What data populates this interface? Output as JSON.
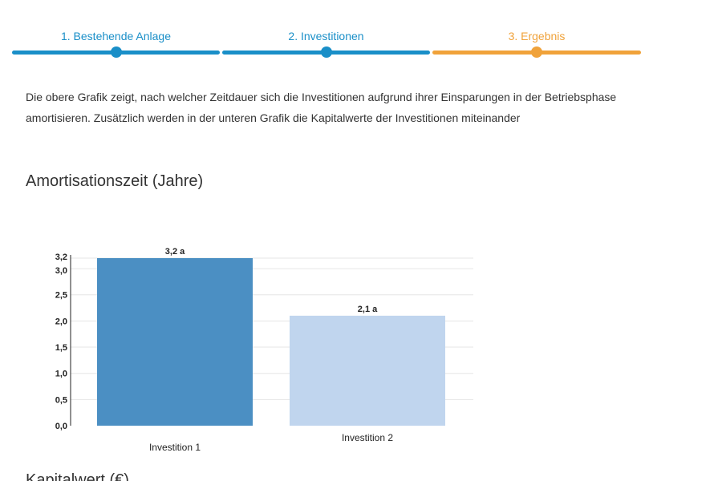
{
  "stepper": {
    "steps": [
      {
        "label": "1. Bestehende Anlage",
        "color": "#1a8fc8",
        "state": "completed"
      },
      {
        "label": "2. Investitionen",
        "color": "#1a8fc8",
        "state": "completed"
      },
      {
        "label": "3. Ergebnis",
        "color": "#f0a23a",
        "state": "active"
      }
    ]
  },
  "description": "Die obere Grafik zeigt, nach welcher Zeitdauer sich die Investitionen aufgrund ihrer Einsparungen in der Betriebsphase amortisieren. Zusätzlich werden in der unteren Grafik die Kapitalwerte der Investitionen miteinander",
  "chart_data": {
    "type": "bar",
    "title": "Amortisationszeit (Jahre)",
    "categories": [
      "Investition 1",
      "Investition 2"
    ],
    "values": [
      3.2,
      2.1
    ],
    "value_labels": [
      "3,2 a",
      "2,1 a"
    ],
    "bar_colors": [
      "#4b8fc3",
      "#c0d5ee"
    ],
    "ylim": [
      0,
      3.2
    ],
    "yticks": [
      0,
      0.5,
      1.0,
      1.5,
      2.0,
      2.5,
      3.0,
      3.2
    ],
    "ytick_labels": [
      "0,0",
      "0,5",
      "1,0",
      "1,5",
      "2,0",
      "2,5",
      "3,0",
      "3,2"
    ],
    "grid": true,
    "xlabel": "",
    "ylabel": ""
  },
  "next_section": {
    "title": "Kapitalwert (€)"
  }
}
